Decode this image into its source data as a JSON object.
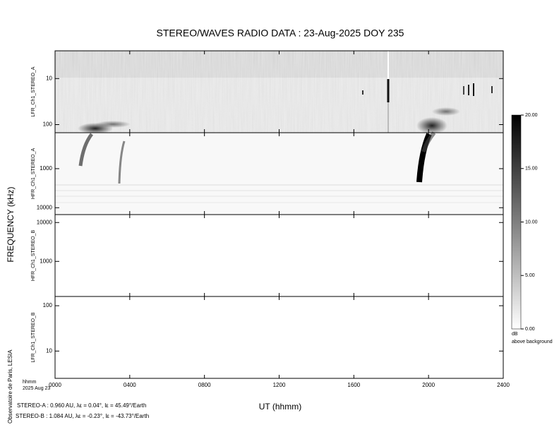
{
  "title": "STEREO/WAVES  RADIO  DATA : 23-Aug-2025  DOY 235",
  "ylabel": "FREQUENCY (kHz)",
  "xlabel": "UT (hhmm)",
  "credit": "Observatoire de Paris, LESIA",
  "date_label": [
    "hhmm",
    "2025 Aug 23"
  ],
  "positions": [
    "STEREO-A : 0.960 AU, λε = 0.04°, lε = 45.49°/Earth",
    "STEREO-B : 1.084 AU, λε = -0.23°, lε = -43.73°/Earth"
  ],
  "xlim": [
    0,
    24
  ],
  "xticks": [
    {
      "value": 0,
      "label": "0000"
    },
    {
      "value": 4,
      "label": "0400"
    },
    {
      "value": 8,
      "label": "0800"
    },
    {
      "value": 12,
      "label": "1200"
    },
    {
      "value": 16,
      "label": "1600"
    },
    {
      "value": 20,
      "label": "2000"
    },
    {
      "value": 24,
      "label": "2400"
    }
  ],
  "colorbar": {
    "label": "dB",
    "sublabel": "above background",
    "lim": [
      0,
      20
    ],
    "ticks": [
      {
        "value": 0,
        "label": "0.00"
      },
      {
        "value": 5,
        "label": "5.00"
      },
      {
        "value": 10,
        "label": "10.00"
      },
      {
        "value": 15,
        "label": "15.00"
      },
      {
        "value": 20,
        "label": "20.00"
      }
    ]
  },
  "chart_data": [
    {
      "type": "spectrogram",
      "ylabel": "LFR_Ch1_STEREO_A",
      "ylim": [
        2.5,
        150
      ],
      "yticks": [
        10,
        100
      ],
      "log_y": true,
      "y_reversed": true
    },
    {
      "type": "spectrogram",
      "ylabel": "HFR_Ch1_STEREO_A",
      "ylim": [
        120,
        15000
      ],
      "yticks": [
        1000,
        10000
      ],
      "log_y": true,
      "y_reversed": true
    },
    {
      "type": "spectrogram",
      "ylabel": "HFR_Ch1_STEREO_B",
      "ylim": [
        125,
        16000
      ],
      "yticks": [
        1000,
        10000
      ],
      "log_y": true,
      "y_reversed": false
    },
    {
      "type": "spectrogram",
      "ylabel": "LFR_Ch1_STEREO_B",
      "ylim": [
        2.5,
        160
      ],
      "yticks": [
        10,
        100
      ],
      "log_y": true,
      "y_reversed": false
    }
  ]
}
